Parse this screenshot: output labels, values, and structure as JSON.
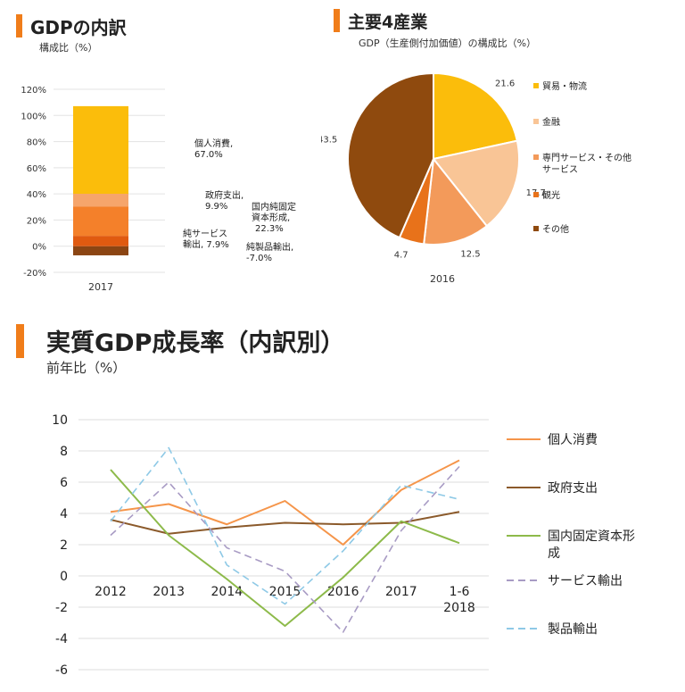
{
  "sections": {
    "gdp_breakdown": {
      "title": "GDPの内訳",
      "subtitle": "構成比（%）"
    },
    "industries": {
      "title": "主要4産業",
      "subtitle": "GDP（生産側付加価値）の構成比（%）"
    },
    "growth": {
      "title": "実質GDP成長率（内訳別）",
      "subtitle": "前年比（%）"
    }
  },
  "chart_data": [
    {
      "type": "bar",
      "stacked": true,
      "categories": [
        "2017"
      ],
      "ylim": [
        -20,
        120
      ],
      "yticks": [
        "-20%",
        "0%",
        "20%",
        "40%",
        "60%",
        "80%",
        "100%",
        "120%"
      ],
      "tick_values": [
        -20,
        0,
        20,
        40,
        60,
        80,
        100,
        120
      ],
      "series": [
        {
          "name": "純製品輸出",
          "value": -7.0,
          "color": "#8B4513"
        },
        {
          "name": "純サービス輸出",
          "value": 7.9,
          "color": "#e05a10"
        },
        {
          "name": "国内純固定資本形成",
          "value": 22.3,
          "color": "#f4802a"
        },
        {
          "name": "政府支出",
          "value": 9.9,
          "color": "#f6a56b"
        },
        {
          "name": "個人消費",
          "value": 67.0,
          "color": "#fbbd0b"
        }
      ],
      "data_labels": [
        {
          "series": "個人消費",
          "line1": "個人消費,",
          "line2": "67.0%"
        },
        {
          "series": "政府支出",
          "line1": "政府支出,",
          "line2": "9.9%"
        },
        {
          "series": "国内純固定資本形成",
          "line1": "国内純固定",
          "line2": "資本形成,",
          "line3": "22.3%"
        },
        {
          "series": "純サービス輸出",
          "line1": "純サービス",
          "line2": "輸出, 7.9%"
        },
        {
          "series": "純製品輸出",
          "line1": "純製品輸出,",
          "line2": "-7.0%"
        }
      ]
    },
    {
      "type": "pie",
      "xlabel": "2016",
      "slices": [
        {
          "name": "貿易・物流",
          "value": 21.6,
          "color": "#fbbd0b"
        },
        {
          "name": "金融",
          "value": 17.7,
          "color": "#f9c596"
        },
        {
          "name": "専門サービス・その他サービス",
          "legend_line1": "専門サービス・その他",
          "legend_line2": "サービス",
          "value": 12.5,
          "color": "#f39a5a"
        },
        {
          "name": "観光",
          "value": 4.7,
          "color": "#e8721a"
        },
        {
          "name": "その他",
          "value": 43.5,
          "color": "#8f4a0e"
        }
      ]
    },
    {
      "type": "line",
      "categories": [
        "2012",
        "2013",
        "2014",
        "2015",
        "2016",
        "2017",
        "1-6\n2018"
      ],
      "category_lines": [
        [
          "2012"
        ],
        [
          "2013"
        ],
        [
          "2014"
        ],
        [
          "2015"
        ],
        [
          "2016"
        ],
        [
          "2017"
        ],
        [
          "1-6",
          "2018"
        ]
      ],
      "ylim": [
        -6,
        10
      ],
      "yticks": [
        -6,
        -4,
        -2,
        0,
        2,
        4,
        6,
        8,
        10
      ],
      "grid": true,
      "legend": "right",
      "series": [
        {
          "name": "個人消費",
          "values": [
            4.1,
            4.6,
            3.3,
            4.8,
            2.0,
            5.5,
            7.4
          ],
          "color": "#f5954a",
          "dash": false
        },
        {
          "name": "政府支出",
          "values": [
            3.6,
            2.7,
            3.1,
            3.4,
            3.3,
            3.4,
            4.1
          ],
          "color": "#8b5a2b",
          "dash": false
        },
        {
          "name": "国内固定資本形成",
          "legend_line1": "国内固定資本形",
          "legend_line2": "成",
          "values": [
            6.8,
            2.6,
            -0.2,
            -3.2,
            -0.1,
            3.5,
            2.1
          ],
          "color": "#8dba4a",
          "dash": false
        },
        {
          "name": "サービス輸出",
          "values": [
            2.6,
            6.0,
            1.8,
            0.3,
            -3.6,
            2.9,
            7.0
          ],
          "color": "#a89bc4",
          "dash": true
        },
        {
          "name": "製品輸出",
          "values": [
            3.5,
            8.2,
            0.7,
            -1.8,
            1.6,
            5.8,
            4.9
          ],
          "color": "#8ec9e6",
          "dash": true
        }
      ]
    }
  ]
}
